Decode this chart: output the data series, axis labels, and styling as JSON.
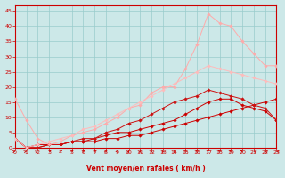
{
  "background_color": "#cce8e8",
  "grid_color": "#99cccc",
  "xlabel": "Vent moyen/en rafales ( km/h )",
  "tick_color": "#cc0000",
  "yticks": [
    0,
    5,
    10,
    15,
    20,
    25,
    30,
    35,
    40,
    45
  ],
  "xticks": [
    0,
    1,
    2,
    3,
    4,
    5,
    6,
    7,
    8,
    9,
    10,
    11,
    12,
    13,
    14,
    15,
    16,
    17,
    18,
    19,
    20,
    21,
    22,
    23
  ],
  "xlim": [
    0,
    23
  ],
  "ylim": [
    0,
    47
  ],
  "series": [
    {
      "x": [
        0,
        1,
        2,
        3,
        4,
        5,
        6,
        7,
        8,
        9,
        10,
        11,
        12,
        13,
        14,
        15,
        16,
        17,
        18,
        19,
        20,
        21,
        22,
        23
      ],
      "y": [
        3,
        0,
        1,
        1,
        1,
        2,
        2,
        2,
        3,
        3,
        4,
        4,
        5,
        6,
        7,
        8,
        9,
        10,
        11,
        12,
        13,
        14,
        15,
        16
      ],
      "color": "#cc0000",
      "linewidth": 0.7,
      "marker": "D",
      "markersize": 1.8
    },
    {
      "x": [
        0,
        1,
        2,
        3,
        4,
        5,
        6,
        7,
        8,
        9,
        10,
        11,
        12,
        13,
        14,
        15,
        16,
        17,
        18,
        19,
        20,
        21,
        22,
        23
      ],
      "y": [
        3,
        0,
        0,
        1,
        1,
        2,
        2,
        3,
        4,
        5,
        5,
        6,
        7,
        8,
        9,
        11,
        13,
        15,
        16,
        16,
        14,
        13,
        12,
        9
      ],
      "color": "#cc0000",
      "linewidth": 0.7,
      "marker": "D",
      "markersize": 1.8
    },
    {
      "x": [
        0,
        1,
        2,
        3,
        4,
        5,
        6,
        7,
        8,
        9,
        10,
        11,
        12,
        13,
        14,
        15,
        16,
        17,
        18,
        19,
        20,
        21,
        22,
        23
      ],
      "y": [
        3,
        0,
        0,
        1,
        1,
        2,
        3,
        3,
        5,
        6,
        8,
        9,
        11,
        13,
        15,
        16,
        17,
        19,
        18,
        17,
        16,
        14,
        13,
        9
      ],
      "color": "#cc1111",
      "linewidth": 0.7,
      "marker": "D",
      "markersize": 1.8
    },
    {
      "x": [
        0,
        1,
        2,
        3,
        4,
        5,
        6,
        7,
        8,
        9,
        10,
        11,
        12,
        13,
        14,
        15,
        16,
        17,
        18,
        19,
        20,
        21,
        22,
        23
      ],
      "y": [
        16,
        9,
        3,
        1,
        2,
        4,
        5,
        6,
        8,
        10,
        13,
        14,
        18,
        20,
        20,
        26,
        34,
        44,
        41,
        40,
        35,
        31,
        27,
        27
      ],
      "color": "#ffaaaa",
      "linewidth": 0.7,
      "marker": "D",
      "markersize": 1.8
    },
    {
      "x": [
        0,
        1,
        2,
        3,
        4,
        5,
        6,
        7,
        8,
        9,
        10,
        11,
        12,
        13,
        14,
        15,
        16,
        17,
        18,
        19,
        20,
        21,
        22,
        23
      ],
      "y": [
        3,
        0,
        1,
        2,
        3,
        4,
        6,
        7,
        9,
        11,
        13,
        15,
        17,
        19,
        21,
        23,
        25,
        27,
        26,
        25,
        24,
        23,
        22,
        21
      ],
      "color": "#ffbbbb",
      "linewidth": 0.7,
      "marker": "D",
      "markersize": 1.8
    }
  ]
}
